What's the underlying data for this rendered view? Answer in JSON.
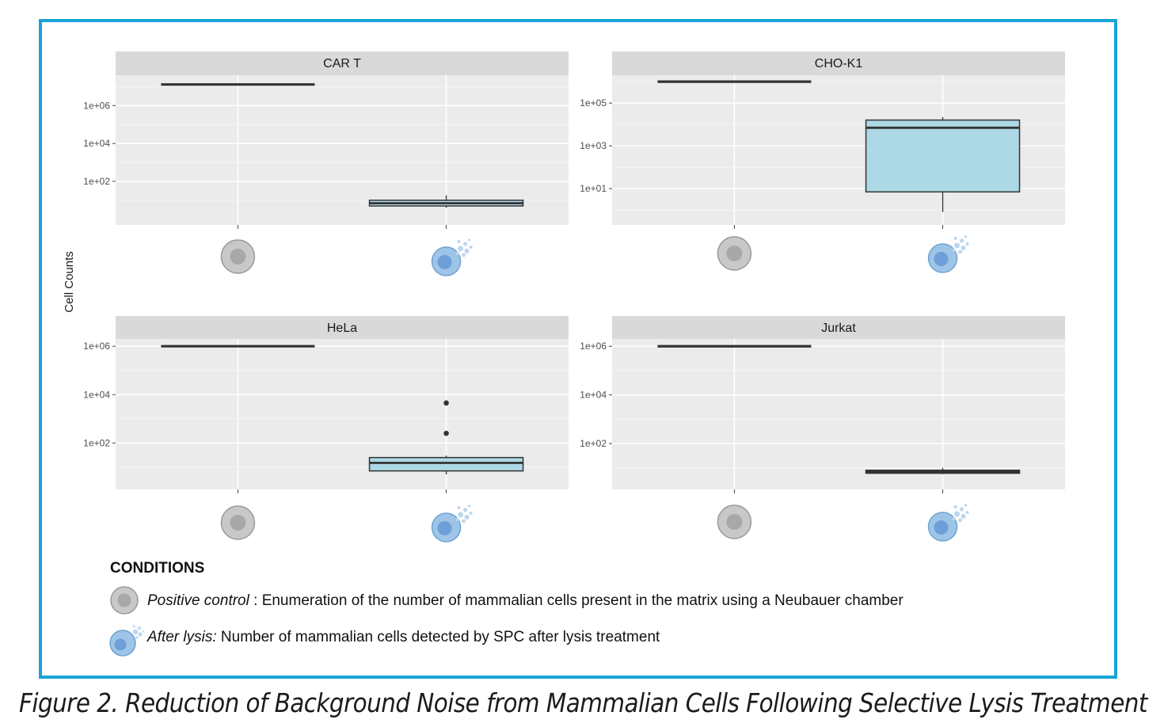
{
  "caption": "Figure 2. Reduction of Background Noise from Mammalian Cells Following Selective Lysis Treatment",
  "legend": {
    "title": "CONDITIONS",
    "items": [
      {
        "name": "Positive control",
        "separator": " : ",
        "description": "Enumeration of the number of mammalian cells present in the matrix using a Neubauer chamber",
        "icon": "grey-cell-icon"
      },
      {
        "name": "After lysis:",
        "separator": " ",
        "description": "Number of mammalian cells detected by SPC after lysis treatment",
        "icon": "lysed-cell-icon"
      }
    ]
  },
  "colors": {
    "panel_bg": "#ebebeb",
    "strip_bg": "#d9d9d9",
    "grid": "#ffffff",
    "box_fill": "#add8e6",
    "frame": "#1aa3d6",
    "cell_grey": "#c8c8c8",
    "cell_blue": "#9ec5e8"
  },
  "chart_data": {
    "type": "box",
    "ylabel": "Cell Counts",
    "y_scale": "log10",
    "x_categories": [
      "Positive control",
      "After lysis"
    ],
    "x_tick_icons": [
      "grey-cell-icon",
      "lysed-cell-icon"
    ],
    "panels": [
      {
        "title": "CAR T",
        "ylim": [
          0.5,
          40000000
        ],
        "yticks": [
          100,
          10000,
          1000000
        ],
        "ytick_labels": [
          "1e+02",
          "1e+04",
          "1e+06"
        ],
        "boxes": [
          {
            "category": "Positive control",
            "q1": 13000000,
            "median": 13000000,
            "q3": 13000000,
            "whisker_low": 13000000,
            "whisker_high": 13000000,
            "outliers": []
          },
          {
            "category": "After lysis",
            "q1": 5,
            "median": 7,
            "q3": 10,
            "whisker_low": 4,
            "whisker_high": 18,
            "outliers": []
          }
        ]
      },
      {
        "title": "CHO-K1",
        "ylim": [
          0.2,
          2000000
        ],
        "yticks": [
          10,
          1000,
          100000
        ],
        "ytick_labels": [
          "1e+01",
          "1e+03",
          "1e+05"
        ],
        "boxes": [
          {
            "category": "Positive control",
            "q1": 1000000,
            "median": 1000000,
            "q3": 1000000,
            "whisker_low": 1000000,
            "whisker_high": 1000000,
            "outliers": []
          },
          {
            "category": "After lysis",
            "q1": 7,
            "median": 7000,
            "q3": 16000,
            "whisker_low": 0.8,
            "whisker_high": 22000,
            "outliers": []
          }
        ]
      },
      {
        "title": "HeLa",
        "ylim": [
          1.2,
          2000000
        ],
        "yticks": [
          100,
          10000,
          1000000
        ],
        "ytick_labels": [
          "1e+02",
          "1e+04",
          "1e+06"
        ],
        "boxes": [
          {
            "category": "Positive control",
            "q1": 1000000,
            "median": 1000000,
            "q3": 1000000,
            "whisker_low": 1000000,
            "whisker_high": 1000000,
            "outliers": []
          },
          {
            "category": "After lysis",
            "q1": 7,
            "median": 15,
            "q3": 25,
            "whisker_low": 5,
            "whisker_high": 30,
            "outliers": [
              250,
              4500
            ]
          }
        ]
      },
      {
        "title": "Jurkat",
        "ylim": [
          1.3,
          2000000
        ],
        "yticks": [
          100,
          10000,
          1000000
        ],
        "ytick_labels": [
          "1e+02",
          "1e+04",
          "1e+06"
        ],
        "boxes": [
          {
            "category": "Positive control",
            "q1": 1000000,
            "median": 1000000,
            "q3": 1000000,
            "whisker_low": 1000000,
            "whisker_high": 1000000,
            "outliers": []
          },
          {
            "category": "After lysis",
            "q1": 6,
            "median": 7,
            "q3": 8,
            "whisker_low": 5.5,
            "whisker_high": 10,
            "outliers": []
          }
        ]
      }
    ]
  }
}
